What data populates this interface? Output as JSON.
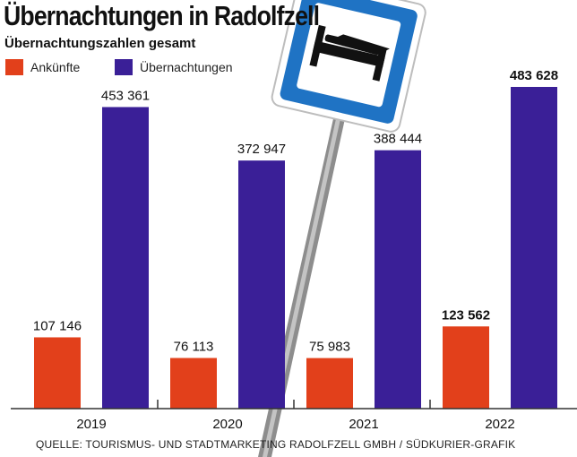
{
  "header": {
    "title": "Übernachtungen in Radolfzell",
    "subtitle": "Übernachtungszahlen gesamt"
  },
  "legend": [
    {
      "label": "Ankünfte",
      "color": "#e2401b"
    },
    {
      "label": "Übernachtungen",
      "color": "#3a1f97"
    }
  ],
  "source": "QUELLE: TOURISMUS- UND STADTMARKETING RADOLFZELL GMBH / SÜDKURIER-GRAFIK",
  "chart_data": {
    "type": "bar",
    "title": "Übernachtungen in Radolfzell",
    "subtitle": "Übernachtungszahlen gesamt",
    "categories": [
      "2019",
      "2020",
      "2021",
      "2022"
    ],
    "series": [
      {
        "name": "Ankünfte",
        "color": "#e2401b",
        "values": [
          107146,
          76113,
          75983,
          123562
        ],
        "labels": [
          "107 146",
          "76 113",
          "75 983",
          "123 562"
        ]
      },
      {
        "name": "Übernachtungen",
        "color": "#3a1f97",
        "values": [
          453361,
          372947,
          388444,
          483628
        ],
        "labels": [
          "453 361",
          "372 947",
          "388 444",
          "483 628"
        ]
      }
    ],
    "highlight_category": "2022",
    "xlabel": "",
    "ylabel": "",
    "ylim": [
      0,
      520000
    ],
    "grid": false,
    "legend_position": "top-left"
  }
}
